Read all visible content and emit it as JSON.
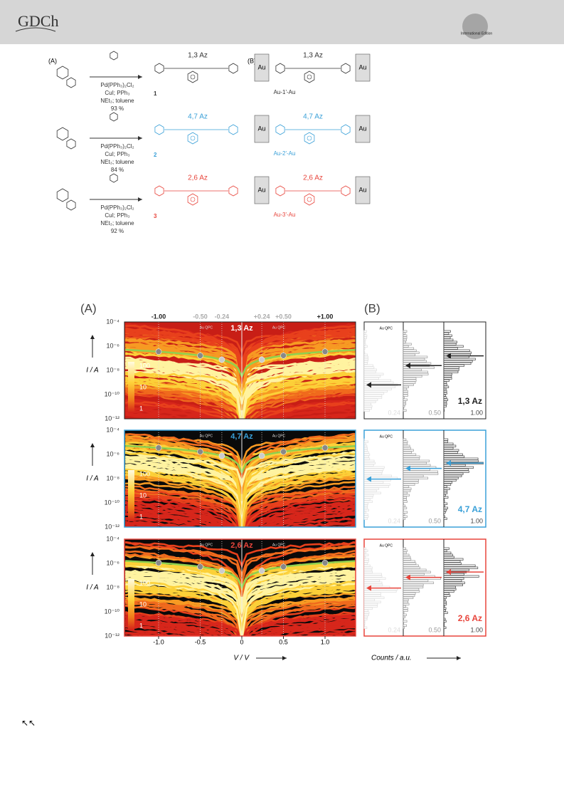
{
  "header": {
    "logo": "GDCh",
    "edition": "International Edition"
  },
  "scheme": {
    "label_a": "(A)",
    "label_b": "(B)",
    "reactions": [
      {
        "conditions": [
          "Pd(PPh₃)₂Cl₂",
          "CuI; PPh₃",
          "NEt₃; toluene",
          "93 %"
        ],
        "compound": "1",
        "isomer": "1,3 Az",
        "junction": "Au-1'-Au",
        "electrode": "Au",
        "color": "#333333"
      },
      {
        "conditions": [
          "Pd(PPh₃)₂Cl₂",
          "CuI; PPh₃",
          "NEt₃; toluene",
          "84 %"
        ],
        "compound": "2",
        "isomer": "4,7 Az",
        "junction": "Au-2'-Au",
        "electrode": "Au",
        "color": "#3aa0d8"
      },
      {
        "conditions": [
          "Pd(PPh₃)₂Cl₂",
          "CuI; PPh₃",
          "NEt₃; toluene",
          "92 %"
        ],
        "compound": "3",
        "isomer": "2,6 Az",
        "junction": "Au-3'-Au",
        "electrode": "Au",
        "color": "#e8453c"
      }
    ]
  },
  "figure": {
    "label_a": "(A)",
    "label_b": "(B)",
    "top_ticks": [
      "-1.00",
      "-0.50",
      "-0.24",
      "+0.24",
      "+0.50",
      "+1.00"
    ],
    "y_ticks": [
      "10⁻⁴",
      "10⁻⁶",
      "10⁻⁸",
      "10⁻¹⁰",
      "10⁻¹²"
    ],
    "colorbar_ticks": [
      "100",
      "10",
      "1"
    ],
    "y_label": "I / A",
    "qpc": "Au QPC",
    "panels": [
      {
        "name": "1,3 Az",
        "color": "#222222",
        "title_color": "#ffffff"
      },
      {
        "name": "4,7 Az",
        "color": "#3aa0d8",
        "title_color": "#3aa0d8"
      },
      {
        "name": "2,6 Az",
        "color": "#e8453c",
        "title_color": "#e8453c"
      }
    ],
    "hist_ticks": [
      "0.24",
      "0.50",
      "1.00"
    ],
    "x_ticks": [
      "-1.0",
      "-0.5",
      "0",
      "0.5",
      "1.0"
    ],
    "x_label": "V / V",
    "counts_label": "Counts / a.u."
  },
  "footer": {
    "marker": "↖↖"
  }
}
